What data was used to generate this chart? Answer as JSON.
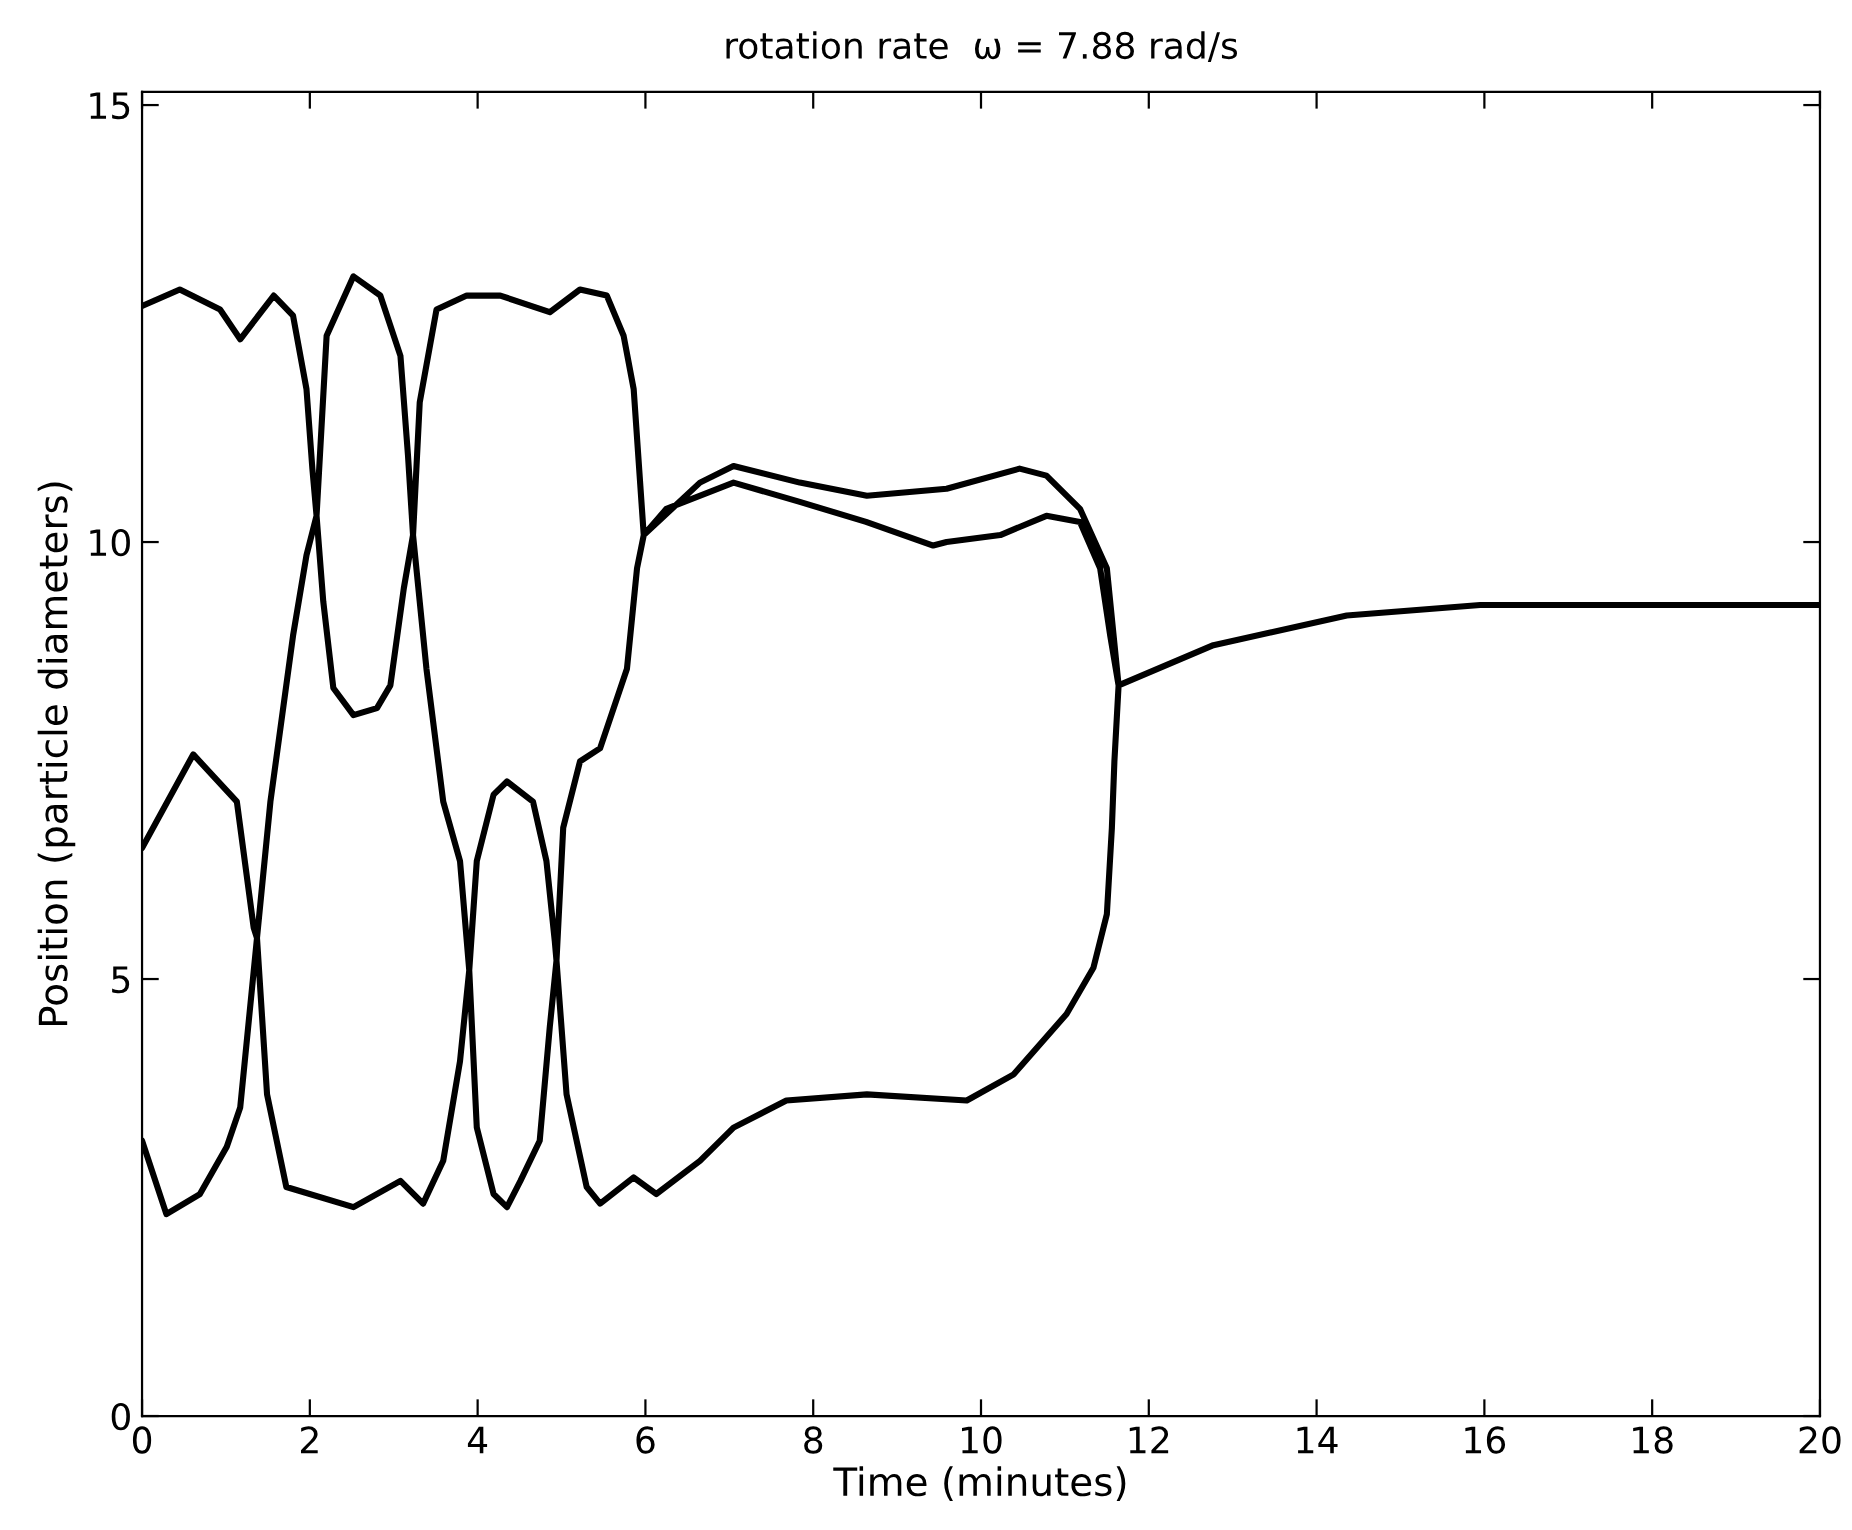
{
  "chart_data": {
    "type": "line",
    "title": "rotation rate  ω = 7.88 rad/s",
    "xlabel": "Time (minutes)",
    "ylabel": "Position (particle diameters)",
    "xlim": [
      0,
      20
    ],
    "ylim": [
      0,
      15.15
    ],
    "xticks": [
      0,
      2,
      4,
      6,
      8,
      10,
      12,
      14,
      16,
      18,
      20
    ],
    "yticks": [
      0,
      5,
      10,
      15
    ],
    "marker": "none",
    "line_style": "solid",
    "series": [
      {
        "color": "#000000",
        "x": [
          0,
          0.45,
          0.93,
          1.17,
          1.57,
          1.8,
          1.96,
          2.03,
          2.08,
          2.16,
          2.28,
          2.52,
          2.8,
          2.96,
          3.12,
          3.23,
          3.31,
          3.51,
          3.87,
          4.27,
          4.86,
          5.22,
          5.54,
          5.74,
          5.86,
          5.98,
          6.25,
          7.05,
          7.84,
          8.63,
          9.43,
          9.59,
          10.23,
          10.78,
          11.18,
          11.42,
          11.54,
          11.64,
          12.77,
          14.36,
          15.95,
          18.33,
          20,
          null,
          0,
          0.61,
          1.13,
          1.33,
          1.37,
          1.49,
          1.72,
          2.52,
          3.08,
          3.35,
          3.59,
          3.79,
          3.9,
          3.99,
          4.19,
          4.35,
          4.66,
          4.82,
          4.92,
          4.94,
          5.06,
          5.3,
          5.46,
          5.86,
          6.13,
          6.65,
          7.05,
          7.68,
          8.64,
          9.83,
          10.39,
          11.02,
          11.34,
          11.5,
          11.56,
          11.59,
          11.64,
          null,
          0,
          0.29,
          0.69,
          1.01,
          1.17,
          1.37,
          1.53,
          1.8,
          1.96,
          2.08,
          2.2,
          2.52,
          2.84,
          3.08,
          3.17,
          3.23,
          3.39,
          3.59,
          3.79,
          3.9,
          3.99,
          4.19,
          4.35,
          4.51,
          4.74,
          4.86,
          4.94,
          5.02,
          5.22,
          5.46,
          5.78,
          5.9,
          5.98,
          6.65,
          7.05,
          7.84,
          8.64,
          9.59,
          10.46,
          10.78,
          11.18,
          11.5,
          11.64
        ],
        "values": [
          12.7,
          12.89,
          12.66,
          12.32,
          12.82,
          12.59,
          11.75,
          10.84,
          10.3,
          9.32,
          8.33,
          8.02,
          8.1,
          8.36,
          9.47,
          10.08,
          11.6,
          12.66,
          12.82,
          12.82,
          12.63,
          12.89,
          12.82,
          12.36,
          11.75,
          10.08,
          10.38,
          10.68,
          10.46,
          10.23,
          9.96,
          10.0,
          10.08,
          10.3,
          10.23,
          9.7,
          8.93,
          8.36,
          8.82,
          9.16,
          9.28,
          9.28,
          9.28,
          null,
          6.5,
          7.57,
          7.03,
          5.59,
          5.47,
          3.68,
          2.62,
          2.39,
          2.69,
          2.43,
          2.92,
          4.06,
          5.1,
          6.35,
          7.11,
          7.26,
          7.03,
          6.35,
          5.43,
          5.21,
          3.68,
          2.62,
          2.43,
          2.73,
          2.54,
          2.92,
          3.3,
          3.61,
          3.68,
          3.61,
          3.91,
          4.6,
          5.13,
          5.74,
          6.73,
          7.49,
          8.36,
          null,
          3.15,
          2.31,
          2.54,
          3.08,
          3.53,
          5.47,
          7.03,
          8.93,
          9.85,
          10.3,
          12.36,
          13.04,
          12.82,
          12.13,
          10.99,
          10.08,
          8.55,
          7.03,
          6.35,
          5.1,
          3.3,
          2.54,
          2.39,
          2.69,
          3.15,
          4.45,
          5.21,
          6.73,
          7.49,
          7.64,
          8.55,
          9.7,
          10.08,
          10.68,
          10.87,
          10.68,
          10.53,
          10.61,
          10.84,
          10.76,
          10.38,
          9.7,
          8.36
        ]
      }
    ]
  }
}
